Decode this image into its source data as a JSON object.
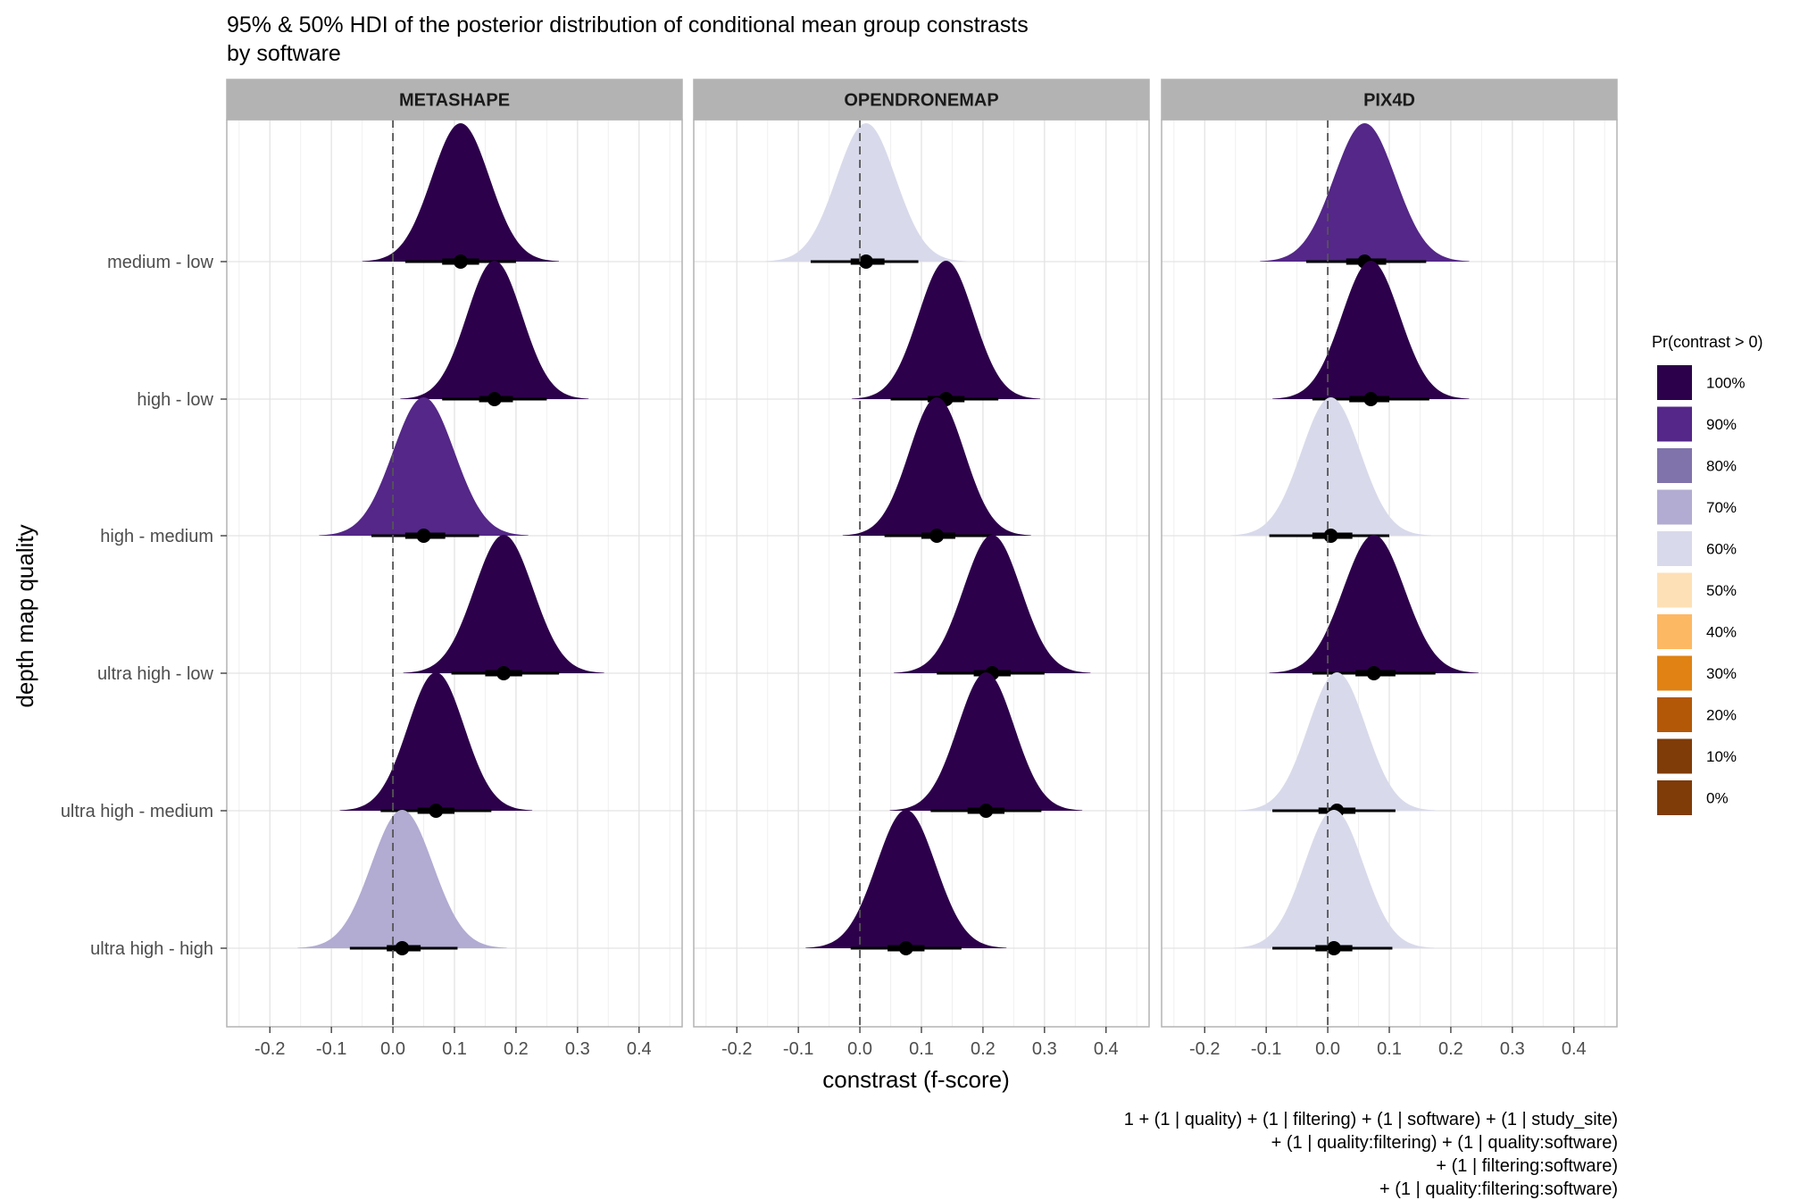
{
  "chart_data": {
    "type": "density",
    "title": "95% & 50% HDI of the posterior distribution of conditional mean group constrasts",
    "subtitle": "by software",
    "xlabel": "constrast (f-score)",
    "ylabel": "depth map quality",
    "xlim": [
      -0.27,
      0.47
    ],
    "x_ticks": [
      -0.2,
      -0.1,
      0.0,
      0.1,
      0.2,
      0.3,
      0.4
    ],
    "x_tick_labels": [
      "-0.2",
      "-0.1",
      "0.0",
      "0.1",
      "0.2",
      "0.3",
      "0.4"
    ],
    "reference_line": 0.0,
    "grid": true,
    "categories": [
      "medium - low",
      "high - low",
      "high - medium",
      "ultra high - low",
      "ultra high - medium",
      "ultra high - high"
    ],
    "legend": {
      "title": "Pr(contrast > 0)",
      "position": "right",
      "items": [
        {
          "label": "100%",
          "color": "#2d004b"
        },
        {
          "label": "90%",
          "color": "#542788"
        },
        {
          "label": "80%",
          "color": "#8073ac"
        },
        {
          "label": "70%",
          "color": "#b2abd2"
        },
        {
          "label": "60%",
          "color": "#d8daeb"
        },
        {
          "label": "50%",
          "color": "#fee0b6"
        },
        {
          "label": "40%",
          "color": "#fdb863"
        },
        {
          "label": "30%",
          "color": "#e08214"
        },
        {
          "label": "20%",
          "color": "#b35806"
        },
        {
          "label": "10%",
          "color": "#7f3b08"
        },
        {
          "label": "0%",
          "color": "#7f3b08"
        }
      ]
    },
    "panels": [
      {
        "name": "METASHAPE",
        "series": [
          {
            "category": "medium - low",
            "median": 0.11,
            "sd": 0.047,
            "hdi50": [
              0.08,
              0.14
            ],
            "hdi95": [
              0.02,
              0.2
            ],
            "prob": "100%"
          },
          {
            "category": "high - low",
            "median": 0.165,
            "sd": 0.045,
            "hdi50": [
              0.14,
              0.195
            ],
            "hdi95": [
              0.08,
              0.25
            ],
            "prob": "100%"
          },
          {
            "category": "high - medium",
            "median": 0.05,
            "sd": 0.05,
            "hdi50": [
              0.02,
              0.085
            ],
            "hdi95": [
              -0.035,
              0.14
            ],
            "prob": "90%"
          },
          {
            "category": "ultra high - low",
            "median": 0.18,
            "sd": 0.048,
            "hdi50": [
              0.15,
              0.21
            ],
            "hdi95": [
              0.095,
              0.27
            ],
            "prob": "100%"
          },
          {
            "category": "ultra high - medium",
            "median": 0.07,
            "sd": 0.046,
            "hdi50": [
              0.04,
              0.1
            ],
            "hdi95": [
              -0.02,
              0.16
            ],
            "prob": "100%"
          },
          {
            "category": "ultra high - high",
            "median": 0.015,
            "sd": 0.05,
            "hdi50": [
              -0.01,
              0.045
            ],
            "hdi95": [
              -0.07,
              0.105
            ],
            "prob": "70%"
          }
        ]
      },
      {
        "name": "OPENDRONEMAP",
        "series": [
          {
            "category": "medium - low",
            "median": 0.01,
            "sd": 0.048,
            "hdi50": [
              -0.015,
              0.04
            ],
            "hdi95": [
              -0.08,
              0.095
            ],
            "prob": "60%"
          },
          {
            "category": "high - low",
            "median": 0.14,
            "sd": 0.045,
            "hdi50": [
              0.11,
              0.17
            ],
            "hdi95": [
              0.05,
              0.225
            ],
            "prob": "100%"
          },
          {
            "category": "high - medium",
            "median": 0.125,
            "sd": 0.045,
            "hdi50": [
              0.1,
              0.155
            ],
            "hdi95": [
              0.04,
              0.215
            ],
            "prob": "100%"
          },
          {
            "category": "ultra high - low",
            "median": 0.215,
            "sd": 0.047,
            "hdi50": [
              0.185,
              0.245
            ],
            "hdi95": [
              0.125,
              0.3
            ],
            "prob": "100%"
          },
          {
            "category": "ultra high - medium",
            "median": 0.205,
            "sd": 0.046,
            "hdi50": [
              0.175,
              0.235
            ],
            "hdi95": [
              0.115,
              0.295
            ],
            "prob": "100%"
          },
          {
            "category": "ultra high - high",
            "median": 0.075,
            "sd": 0.048,
            "hdi50": [
              0.045,
              0.105
            ],
            "hdi95": [
              -0.015,
              0.165
            ],
            "prob": "100%"
          }
        ]
      },
      {
        "name": "PIX4D",
        "series": [
          {
            "category": "medium - low",
            "median": 0.06,
            "sd": 0.05,
            "hdi50": [
              0.03,
              0.095
            ],
            "hdi95": [
              -0.035,
              0.16
            ],
            "prob": "90%"
          },
          {
            "category": "high - low",
            "median": 0.07,
            "sd": 0.047,
            "hdi50": [
              0.035,
              0.1
            ],
            "hdi95": [
              -0.025,
              0.165
            ],
            "prob": "100%"
          },
          {
            "category": "high - medium",
            "median": 0.005,
            "sd": 0.048,
            "hdi50": [
              -0.025,
              0.04
            ],
            "hdi95": [
              -0.095,
              0.1
            ],
            "prob": "60%"
          },
          {
            "category": "ultra high - low",
            "median": 0.075,
            "sd": 0.05,
            "hdi50": [
              0.045,
              0.11
            ],
            "hdi95": [
              -0.025,
              0.175
            ],
            "prob": "100%"
          },
          {
            "category": "ultra high - medium",
            "median": 0.015,
            "sd": 0.047,
            "hdi50": [
              -0.015,
              0.045
            ],
            "hdi95": [
              -0.09,
              0.11
            ],
            "prob": "60%"
          },
          {
            "category": "ultra high - high",
            "median": 0.01,
            "sd": 0.048,
            "hdi50": [
              -0.02,
              0.04
            ],
            "hdi95": [
              -0.09,
              0.105
            ],
            "prob": "60%"
          }
        ]
      }
    ],
    "caption": [
      "1 + (1 | quality) + (1 | filtering) + (1 | software) + (1 | study_site)",
      "+ (1 | quality:filtering) + (1 | quality:software)",
      "+ (1 | filtering:software)",
      "+ (1 | quality:filtering:software)"
    ]
  }
}
